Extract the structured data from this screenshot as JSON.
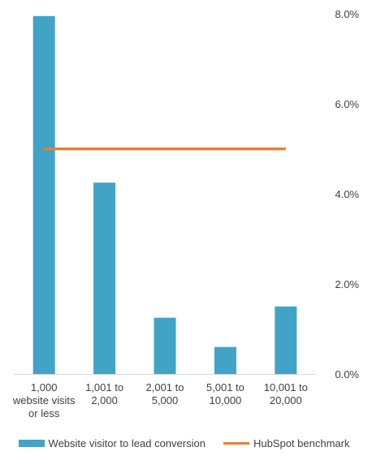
{
  "chart_data": {
    "type": "bar",
    "categories": [
      [
        "1,000",
        "website visits",
        "or less"
      ],
      [
        "1,001 to",
        "2,000"
      ],
      [
        "2,001 to",
        "5,000"
      ],
      [
        "5,001 to",
        "10,000"
      ],
      [
        "10,001 to",
        "20,000"
      ]
    ],
    "series": [
      {
        "name": "Website visitor to lead conversion",
        "type": "bar",
        "values": [
          7.95,
          4.25,
          1.25,
          0.6,
          1.5
        ],
        "color": "#41A3C6"
      },
      {
        "name": "HubSpot benchmark",
        "type": "line",
        "values": [
          5.0,
          5.0,
          5.0,
          5.0,
          5.0
        ],
        "color": "#ED7D31"
      }
    ],
    "y_axis": {
      "position": "right",
      "min": 0,
      "max": 8,
      "step": 2,
      "unit": "%"
    },
    "yticks": [
      "0.0%",
      "2.0%",
      "4.0%",
      "6.0%",
      "8.0%"
    ],
    "grid": false,
    "legend_position": "bottom",
    "title": "",
    "xlabel": "",
    "ylabel": ""
  }
}
